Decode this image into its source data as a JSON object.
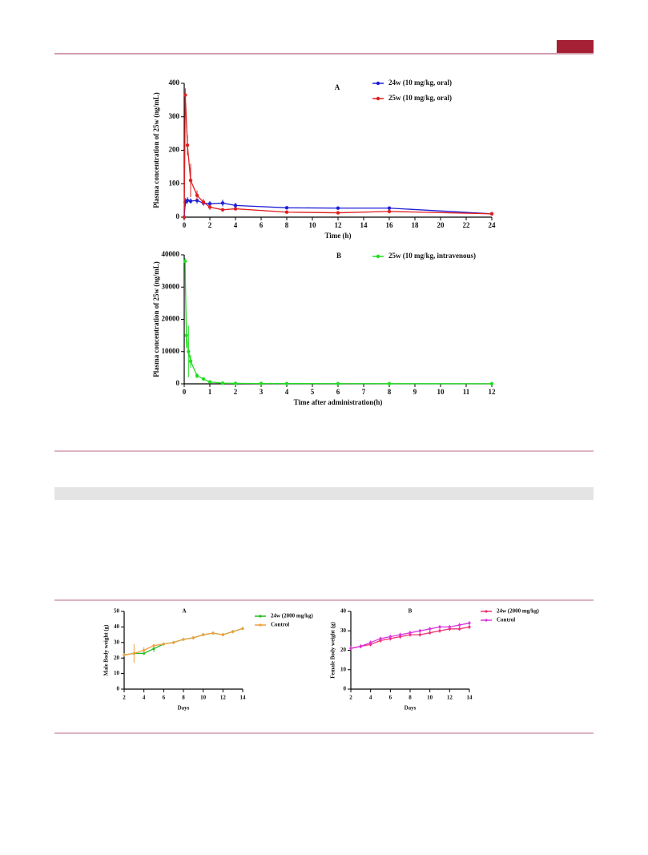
{
  "chart_data": [
    {
      "type": "line",
      "panel": "A",
      "xlabel": "Time (h)",
      "ylabel": "Plasma concentration of 25w (ng/mL)",
      "x": [
        0,
        0.083,
        0.25,
        0.5,
        1,
        1.5,
        2,
        3,
        4,
        8,
        12,
        16,
        24
      ],
      "series": [
        {
          "name": "24w (10 mg/kg, oral)",
          "color": "#1f1fd6",
          "values": [
            0,
            45,
            50,
            48,
            50,
            42,
            40,
            42,
            35,
            28,
            27,
            27,
            10
          ],
          "errors": [
            0,
            12,
            10,
            8,
            10,
            8,
            8,
            10,
            8,
            5,
            4,
            5,
            3
          ]
        },
        {
          "name": "25w (10 mg/kg, oral)",
          "color": "#e02020",
          "values": [
            0,
            365,
            215,
            110,
            65,
            45,
            30,
            22,
            25,
            15,
            13,
            17,
            10
          ],
          "errors": [
            0,
            20,
            30,
            50,
            15,
            10,
            8,
            5,
            5,
            3,
            3,
            3,
            2
          ]
        }
      ],
      "xlim": [
        0,
        24
      ],
      "xticks": [
        0,
        2,
        4,
        6,
        8,
        10,
        12,
        14,
        16,
        18,
        20,
        22,
        24
      ],
      "ylim": [
        0,
        400
      ],
      "yticks": [
        0,
        100,
        200,
        300,
        400
      ],
      "legend": "upper right"
    },
    {
      "type": "line",
      "panel": "B",
      "xlabel": "Time after administration(h)",
      "ylabel": "Plasma concentration of 25w (ng/mL)",
      "x": [
        0.033,
        0.083,
        0.167,
        0.25,
        0.5,
        0.75,
        1,
        1.5,
        2,
        3,
        4,
        6,
        8,
        12
      ],
      "series": [
        {
          "name": "25w (10 mg/kg, intravenous)",
          "color": "#22dd22",
          "values": [
            38000,
            15000,
            10000,
            7000,
            2500,
            1500,
            600,
            200,
            150,
            100,
            80,
            60,
            50,
            30
          ],
          "errors": [
            1000,
            4000,
            8000,
            2000,
            800,
            500,
            200,
            50,
            40,
            30,
            20,
            20,
            10,
            10
          ]
        }
      ],
      "xlim": [
        0,
        12
      ],
      "xticks": [
        0,
        1,
        2,
        3,
        4,
        5,
        6,
        7,
        8,
        9,
        10,
        11,
        12
      ],
      "ylim": [
        0,
        40000
      ],
      "yticks": [
        0,
        10000,
        20000,
        30000,
        40000
      ],
      "legend": "upper right"
    },
    {
      "type": "line",
      "panel": "A",
      "xlabel": "Days",
      "ylabel": "Male Body weight (g)",
      "x": [
        2,
        3,
        4,
        5,
        6,
        7,
        8,
        9,
        10,
        11,
        12,
        13,
        14
      ],
      "series": [
        {
          "name": "24w (2000 mg/kg)",
          "color": "#22bb22",
          "values": [
            22,
            23,
            23,
            26,
            29,
            30,
            32,
            33,
            35,
            36,
            35,
            37,
            39
          ],
          "errors": [
            1,
            1,
            1,
            2,
            1,
            1,
            1,
            1,
            1,
            1,
            1,
            1,
            1
          ]
        },
        {
          "name": "Control",
          "color": "#f0a040",
          "values": [
            22,
            23,
            25,
            28,
            29,
            30,
            32,
            33,
            35,
            36,
            35,
            37,
            39
          ],
          "errors": [
            1,
            6,
            2,
            1,
            1,
            1,
            1,
            1,
            1,
            1,
            1,
            1,
            1
          ]
        }
      ],
      "xlim": [
        2,
        14
      ],
      "xticks": [
        2,
        4,
        6,
        8,
        10,
        12,
        14
      ],
      "ylim": [
        0,
        50
      ],
      "yticks": [
        0,
        10,
        20,
        30,
        40,
        50
      ],
      "legend": "upper right"
    },
    {
      "type": "line",
      "panel": "B",
      "xlabel": "Days",
      "ylabel": "Female Body weight (g)",
      "x": [
        2,
        3,
        4,
        5,
        6,
        7,
        8,
        9,
        10,
        11,
        12,
        13,
        14
      ],
      "series": [
        {
          "name": "24w (2000 mg/kg)",
          "color": "#ee3377",
          "values": [
            21,
            22,
            23,
            25,
            26,
            27,
            28,
            28,
            29,
            30,
            31,
            31,
            32
          ],
          "errors": [
            1,
            1,
            1,
            1,
            1,
            1,
            1,
            1,
            1,
            1,
            1,
            1,
            1
          ]
        },
        {
          "name": "Control",
          "color": "#dd33dd",
          "values": [
            21,
            22,
            24,
            26,
            27,
            28,
            29,
            30,
            31,
            32,
            32,
            33,
            34
          ],
          "errors": [
            1,
            1,
            1,
            1,
            1,
            1,
            1,
            1,
            1,
            1,
            1,
            1,
            1
          ]
        }
      ],
      "xlim": [
        2,
        14
      ],
      "xticks": [
        2,
        4,
        6,
        8,
        10,
        12,
        14
      ],
      "ylim": [
        0,
        40
      ],
      "yticks": [
        0,
        10,
        20,
        30,
        40
      ],
      "legend": "upper right"
    }
  ]
}
